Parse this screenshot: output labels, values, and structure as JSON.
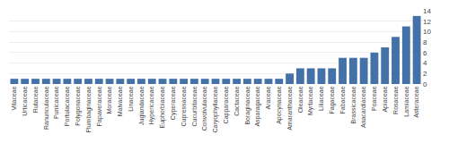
{
  "chart_data": {
    "type": "bar",
    "categories": [
      "Vitaceae",
      "Urticaceae",
      "Rutaceae",
      "Ranunculaceae",
      "Punicaceae",
      "Portulacaceae",
      "Polygonaceae",
      "Plumbaginaceae",
      "Papaveraceae",
      "Moraceae",
      "Malvaceae",
      "Linaceae",
      "Juglandaceae",
      "Hypericaceae",
      "Euphorbiaceae",
      "Cyperaceae",
      "Cupressaceae",
      "Cucurbitaceae",
      "Convolvulaceae",
      "Caryophyllaceae",
      "Capparaceae",
      "Cactaceae",
      "Boraginaceae",
      "Asparagaceae",
      "Araceae",
      "Apocynaceae",
      "Amaranthaceae",
      "Oleaceae",
      "Myrtaceae",
      "Liliaceae",
      "Fagaceae",
      "Fabaceae",
      "Brassicaceae",
      "Anacardiaceae",
      "Poaceae",
      "Apiaceae",
      "Rosaceae",
      "Lamiaceae",
      "Asteraceae"
    ],
    "values": [
      1,
      1,
      1,
      1,
      1,
      1,
      1,
      1,
      1,
      1,
      1,
      1,
      1,
      1,
      1,
      1,
      1,
      1,
      1,
      1,
      1,
      1,
      1,
      1,
      1,
      1,
      2,
      3,
      3,
      3,
      3,
      5,
      5,
      5,
      6,
      7,
      9,
      11,
      13
    ],
    "color": "#4472a8",
    "ylim": [
      0,
      14
    ],
    "yticks": [
      0,
      2,
      4,
      6,
      8,
      10,
      12,
      14
    ],
    "grid": true
  }
}
